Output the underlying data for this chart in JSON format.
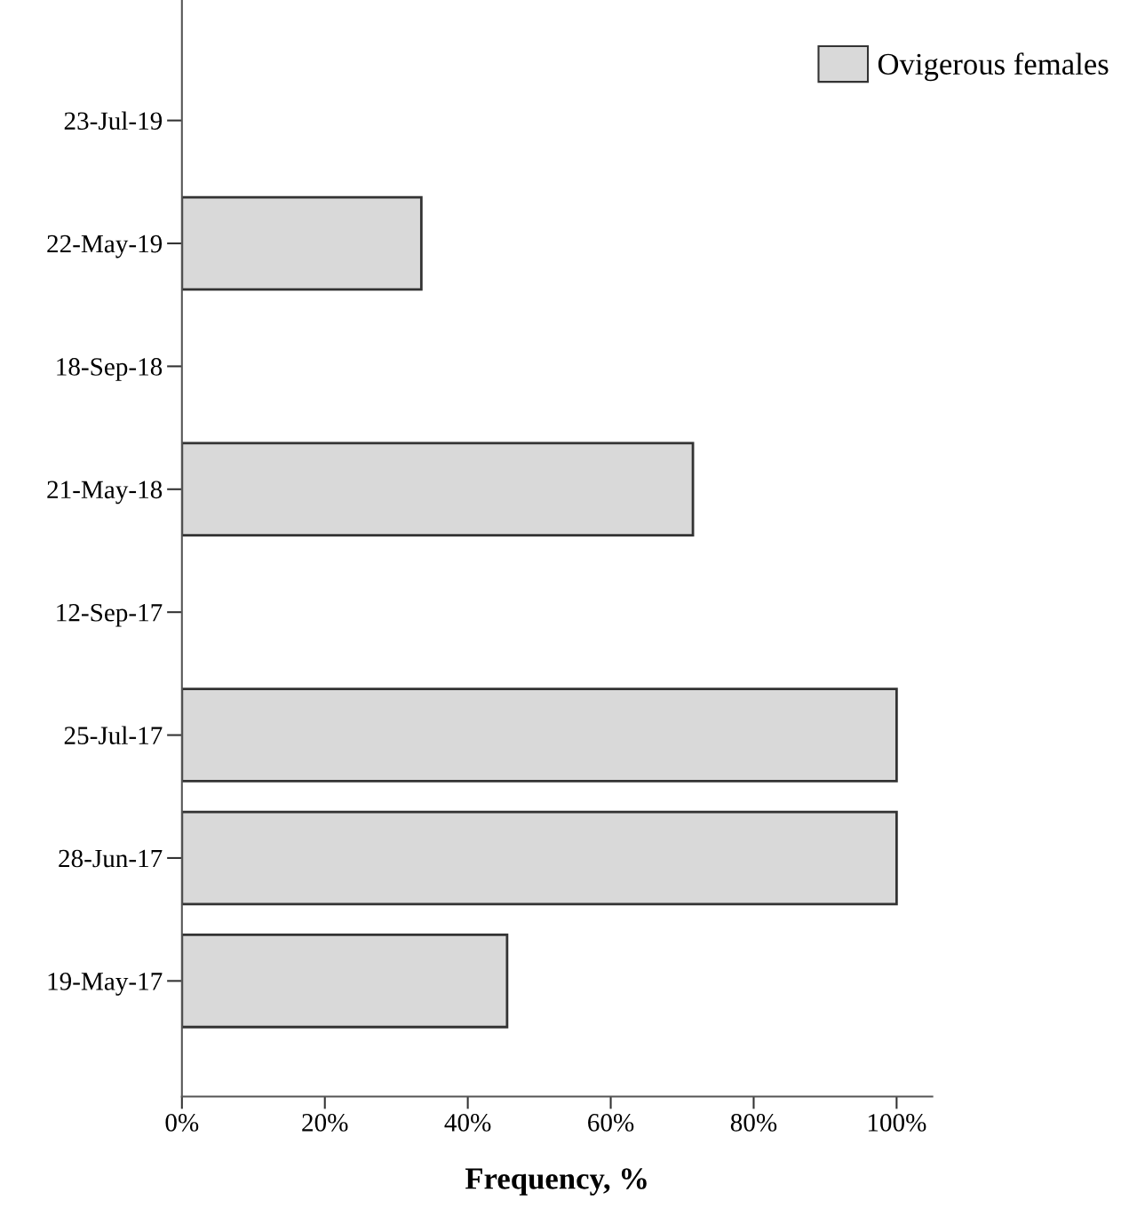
{
  "chart_data": {
    "type": "bar",
    "orientation": "horizontal",
    "xlabel": "Frequency, %",
    "categories": [
      "23-Jul-19",
      "22-May-19",
      "18-Sep-18",
      "21-May-18",
      "12-Sep-17",
      "25-Jul-17",
      "28-Jun-17",
      "19-May-17"
    ],
    "series": [
      {
        "name": "Ovigerous females",
        "color": "#d9d9d9",
        "values": [
          0,
          33.5,
          0,
          71.5,
          0,
          100,
          100,
          45.5
        ]
      }
    ],
    "xlim": [
      0,
      105
    ],
    "xticks": [
      {
        "value": 0,
        "label": "0%"
      },
      {
        "value": 20,
        "label": "20%"
      },
      {
        "value": 40,
        "label": "40%"
      },
      {
        "value": 60,
        "label": "60%"
      },
      {
        "value": 80,
        "label": "80%"
      },
      {
        "value": 100,
        "label": "100%"
      }
    ],
    "grid": false,
    "legend": "top right"
  }
}
